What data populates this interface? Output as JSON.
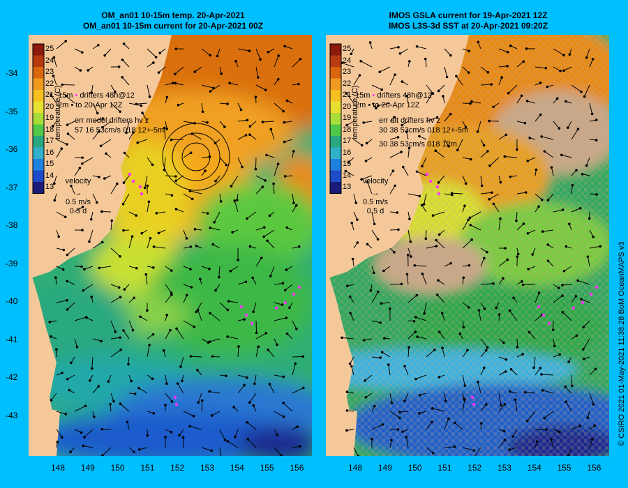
{
  "left_panel": {
    "title_line1": "OM_an01 10-15m temp. 20-Apr-2021",
    "title_line2": "OM_an01 10-15m current for 20-Apr-2021 00Z",
    "legend_drifters": "drifters 48h@12",
    "legend_to": "to 20-Apr 12Z",
    "legend_15m": "15m",
    "legend_2m": "2m",
    "err_line1": "err model drifters hv z",
    "err_line2": "57 16 53cm/s 018 12+-5m"
  },
  "right_panel": {
    "title_line1": "IMOS GSLA current for 19-Apr-2021 12Z",
    "title_line2": "IMOS L3S-3d SST at 20-Apr-2021 09:20Z",
    "legend_drifters": "drifters 48h@12",
    "legend_to": "to 20-Apr 12Z",
    "legend_15m": "15m",
    "legend_2m": "2m",
    "err_line1": "err alt drifters hv z",
    "err_line2": "30 38 53cm/s 018 12+-5m",
    "err_line3": "30 38 53cm/s 018 12m"
  },
  "colorbar": {
    "label": "temperature (C)",
    "ticks": [
      "25",
      "24",
      "23",
      "22",
      "21",
      "20",
      "19",
      "18",
      "17",
      "16",
      "15",
      "14",
      "13"
    ]
  },
  "velocity_scale": {
    "label": "velocity",
    "speed": "0.5 m/s",
    "duration": "0.5 d"
  },
  "lat_labels": [
    "-34",
    "-35",
    "-36",
    "-37",
    "-38",
    "-39",
    "-40",
    "-41",
    "-42",
    "-43"
  ],
  "lon_labels": [
    "148",
    "149",
    "150",
    "151",
    "152",
    "153",
    "154",
    "155",
    "156"
  ],
  "credit": "© CSIRO 2021   01-May-2021 11:38:28 BoM OceanMAPS v3",
  "colors": {
    "background": "#00bfff",
    "land": "#f5c89a",
    "no_data": "#c8a888",
    "drifter": "#ff33ff"
  }
}
